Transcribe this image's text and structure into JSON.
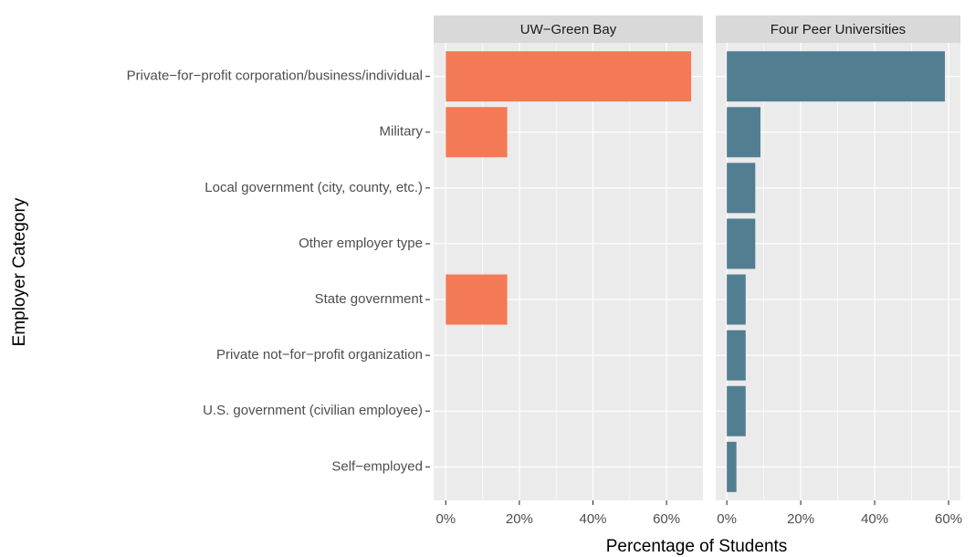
{
  "chart_data": {
    "type": "bar",
    "orientation": "horizontal",
    "x_label": "Percentage of Students",
    "y_label": "Employer Category",
    "categories": [
      "Private−for−profit corporation/business/individual",
      "Military",
      "Local government (city, county, etc.)",
      "Other employer type",
      "State government",
      "Private not−for−profit organization",
      "U.S. government (civilian employee)",
      "Self−employed"
    ],
    "grid": true,
    "facets": [
      {
        "title": "UW−Green Bay",
        "color": "#F37A55",
        "values": [
          66.7,
          16.7,
          0,
          0,
          16.7,
          0,
          0,
          0
        ],
        "xlim": [
          -3.3,
          69.9
        ],
        "xticks": [
          {
            "value": 0,
            "label": "0%"
          },
          {
            "value": 20,
            "label": "20%"
          },
          {
            "value": 40,
            "label": "40%"
          },
          {
            "value": 60,
            "label": "60%"
          }
        ]
      },
      {
        "title": "Four Peer Universities",
        "color": "#527E92",
        "values": [
          59,
          9.1,
          7.7,
          7.7,
          5.1,
          5.1,
          5.1,
          2.6
        ],
        "xlim": [
          -3.0,
          63.2
        ],
        "xticks": [
          {
            "value": 0,
            "label": "0%"
          },
          {
            "value": 20,
            "label": "20%"
          },
          {
            "value": 40,
            "label": "40%"
          },
          {
            "value": 60,
            "label": "60%"
          }
        ]
      }
    ]
  }
}
